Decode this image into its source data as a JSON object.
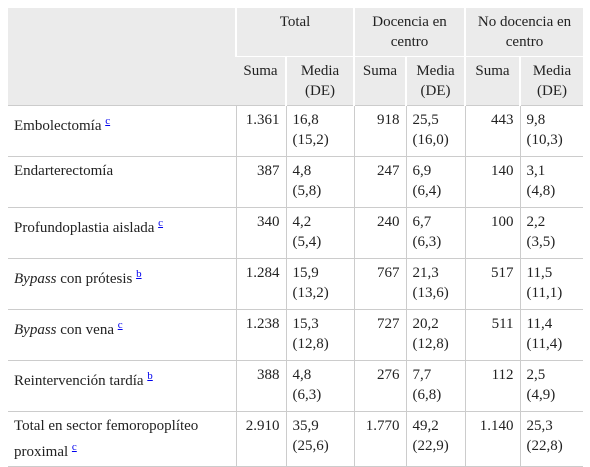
{
  "table": {
    "header": {
      "groups": [
        "Total",
        "Docencia en centro",
        "No docencia en centro"
      ],
      "sub": [
        "Suma",
        "Media (DE)"
      ]
    },
    "rows": [
      {
        "label": "Embolectomía",
        "note": "c",
        "cells": [
          {
            "suma": "1.361",
            "media": "16,8",
            "de": "(15,2)"
          },
          {
            "suma": "918",
            "media": "25,5",
            "de": "(16,0)"
          },
          {
            "suma": "443",
            "media": "9,8",
            "de": "(10,3)"
          }
        ]
      },
      {
        "label": "Endarterectomía",
        "cells": [
          {
            "suma": "387",
            "media": "4,8",
            "de": "(5,8)"
          },
          {
            "suma": "247",
            "media": "6,9",
            "de": "(6,4)"
          },
          {
            "suma": "140",
            "media": "3,1",
            "de": "(4,8)"
          }
        ]
      },
      {
        "label": "Profundoplastia aislada",
        "note": "c",
        "cells": [
          {
            "suma": "340",
            "media": "4,2",
            "de": "(5,4)"
          },
          {
            "suma": "240",
            "media": "6,7",
            "de": "(6,3)"
          },
          {
            "suma": "100",
            "media": "2,2",
            "de": "(3,5)"
          }
        ]
      },
      {
        "label_em": "Bypass",
        "label": "con prótesis",
        "note": "b",
        "cells": [
          {
            "suma": "1.284",
            "media": "15,9",
            "de": "(13,2)"
          },
          {
            "suma": "767",
            "media": "21,3",
            "de": "(13,6)"
          },
          {
            "suma": "517",
            "media": "11,5",
            "de": "(11,1)"
          }
        ]
      },
      {
        "label_em": "Bypass",
        "label": "con vena",
        "note": "c",
        "cells": [
          {
            "suma": "1.238",
            "media": "15,3",
            "de": "(12,8)"
          },
          {
            "suma": "727",
            "media": "20,2",
            "de": "(12,8)"
          },
          {
            "suma": "511",
            "media": "11,4",
            "de": "(11,4)"
          }
        ]
      },
      {
        "label": "Reintervención tardía",
        "note": "b",
        "cells": [
          {
            "suma": "388",
            "media": "4,8",
            "de": "(6,3)"
          },
          {
            "suma": "276",
            "media": "7,7",
            "de": "(6,8)"
          },
          {
            "suma": "112",
            "media": "2,5",
            "de": "(4,9)"
          }
        ]
      },
      {
        "label": "Total en sector femoropoplíteo proximal",
        "note": "c",
        "cells": [
          {
            "suma": "2.910",
            "media": "35,9",
            "de": "(25,6)"
          },
          {
            "suma": "1.770",
            "media": "49,2",
            "de": "(22,9)"
          },
          {
            "suma": "1.140",
            "media": "25,3",
            "de": "(22,8)"
          }
        ]
      }
    ]
  }
}
